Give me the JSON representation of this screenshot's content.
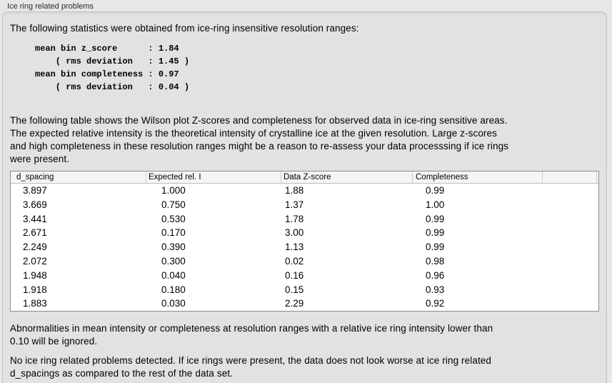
{
  "section": {
    "title": "Ice ring related problems",
    "intro": "The following statistics were obtained from ice-ring insensitive resolution ranges:",
    "stats_block": "mean bin z_score      : 1.84\n    ( rms deviation   : 1.45 )\nmean bin completeness : 0.97\n    ( rms deviation   : 0.04 )",
    "stats": {
      "mean_bin_z_score": "1.84",
      "z_score_rms_deviation": "1.45",
      "mean_bin_completeness": "0.97",
      "completeness_rms_deviation": "0.04"
    },
    "table_description": "The following table shows the Wilson plot Z-scores and completeness for observed data in ice-ring sensitive areas.\nThe expected relative intensity is the theoretical intensity of crystalline ice at the given resolution. Large z-scores\nand high completeness in these resolution ranges might be a reason to re-assess your data processsing if ice rings\nwere present.",
    "ignore_note": "Abnormalities in mean intensity or completeness at resolution ranges with a relative ice ring intensity lower than\n0.10 will be ignored.",
    "conclusion": "No ice ring related problems detected. If ice rings were present, the data does not look worse at ice ring related\nd_spacings as compared to the rest of the data set."
  },
  "table": {
    "headers": [
      "d_spacing",
      "Expected rel. I",
      "Data Z-score",
      "Completeness",
      "",
      ""
    ],
    "rows": [
      [
        "3.897",
        "1.000",
        "1.88",
        "0.99"
      ],
      [
        "3.669",
        "0.750",
        "1.37",
        "1.00"
      ],
      [
        "3.441",
        "0.530",
        "1.78",
        "0.99"
      ],
      [
        "2.671",
        "0.170",
        "3.00",
        "0.99"
      ],
      [
        "2.249",
        "0.390",
        "1.13",
        "0.99"
      ],
      [
        "2.072",
        "0.300",
        "0.02",
        "0.98"
      ],
      [
        "1.948",
        "0.040",
        "0.16",
        "0.96"
      ],
      [
        "1.918",
        "0.180",
        "0.15",
        "0.93"
      ],
      [
        "1.883",
        "0.030",
        "2.29",
        "0.92"
      ]
    ]
  },
  "colors": {
    "page_bg": "#e7e7e7",
    "box_bg": "#e2e2e2",
    "box_border": "#c3c3c3",
    "table_border": "#8c8c8c",
    "table_header_bg": "#f5f5f5",
    "table_row_bg": "#ffffff"
  }
}
